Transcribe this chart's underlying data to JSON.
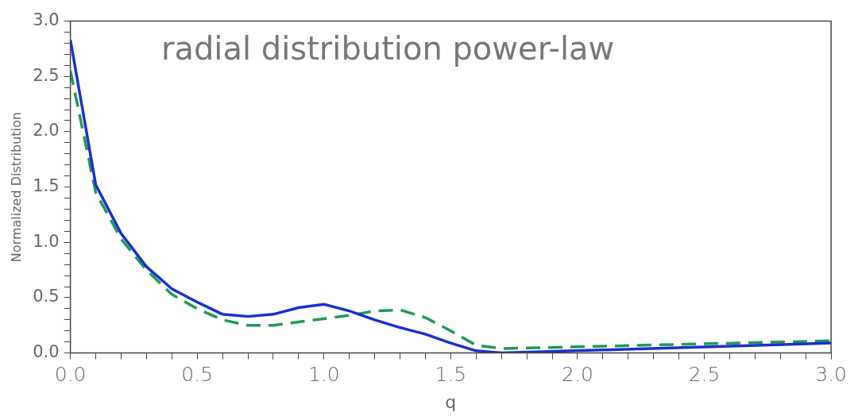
{
  "chart_data": {
    "type": "line",
    "title": "radial distribution power-law",
    "xlabel": "q",
    "ylabel": "Normalized Distribution",
    "marker": "none",
    "grid": false,
    "legend": false,
    "xlim": [
      0,
      3
    ],
    "ylim": [
      0,
      3
    ],
    "xticks": [
      {
        "value": 0,
        "label": "0.0"
      },
      {
        "value": 0.1,
        "label": null
      },
      {
        "value": 0.2,
        "label": null
      },
      {
        "value": 0.3,
        "label": null
      },
      {
        "value": 0.4,
        "label": null
      },
      {
        "value": 0.5,
        "label": "0.5"
      },
      {
        "value": 0.6,
        "label": null
      },
      {
        "value": 0.7,
        "label": null
      },
      {
        "value": 0.8,
        "label": null
      },
      {
        "value": 0.9,
        "label": null
      },
      {
        "value": 1,
        "label": "1.0"
      },
      {
        "value": 1.1,
        "label": null
      },
      {
        "value": 1.2,
        "label": null
      },
      {
        "value": 1.3,
        "label": null
      },
      {
        "value": 1.4,
        "label": null
      },
      {
        "value": 1.5,
        "label": "1.5"
      },
      {
        "value": 1.6,
        "label": null
      },
      {
        "value": 1.7,
        "label": null
      },
      {
        "value": 1.8,
        "label": null
      },
      {
        "value": 1.9,
        "label": null
      },
      {
        "value": 2,
        "label": "2.0"
      },
      {
        "value": 2.1,
        "label": null
      },
      {
        "value": 2.2,
        "label": null
      },
      {
        "value": 2.3,
        "label": null
      },
      {
        "value": 2.4,
        "label": null
      },
      {
        "value": 2.5,
        "label": "2.5"
      },
      {
        "value": 2.6,
        "label": null
      },
      {
        "value": 2.7,
        "label": null
      },
      {
        "value": 2.8,
        "label": null
      },
      {
        "value": 2.9,
        "label": null
      },
      {
        "value": 3,
        "label": "3.0"
      }
    ],
    "yticks": [
      {
        "value": 0,
        "label": "0.0"
      },
      {
        "value": 0.1,
        "label": null
      },
      {
        "value": 0.2,
        "label": null
      },
      {
        "value": 0.3,
        "label": null
      },
      {
        "value": 0.4,
        "label": null
      },
      {
        "value": 0.5,
        "label": "0.5"
      },
      {
        "value": 0.6,
        "label": null
      },
      {
        "value": 0.7,
        "label": null
      },
      {
        "value": 0.8,
        "label": null
      },
      {
        "value": 0.9,
        "label": null
      },
      {
        "value": 1,
        "label": "1.0"
      },
      {
        "value": 1.1,
        "label": null
      },
      {
        "value": 1.2,
        "label": null
      },
      {
        "value": 1.3,
        "label": null
      },
      {
        "value": 1.4,
        "label": null
      },
      {
        "value": 1.5,
        "label": "1.5"
      },
      {
        "value": 1.6,
        "label": null
      },
      {
        "value": 1.7,
        "label": null
      },
      {
        "value": 1.8,
        "label": null
      },
      {
        "value": 1.9,
        "label": null
      },
      {
        "value": 2,
        "label": "2.0"
      },
      {
        "value": 2.1,
        "label": null
      },
      {
        "value": 2.2,
        "label": null
      },
      {
        "value": 2.3,
        "label": null
      },
      {
        "value": 2.4,
        "label": null
      },
      {
        "value": 2.5,
        "label": "2.5"
      },
      {
        "value": 2.6,
        "label": null
      },
      {
        "value": 2.7,
        "label": null
      },
      {
        "value": 2.8,
        "label": null
      },
      {
        "value": 2.9,
        "label": null
      },
      {
        "value": 3,
        "label": "3.0"
      }
    ],
    "series": [
      {
        "color": "#1a2fd0",
        "line_style": "solid",
        "x": [
          0,
          0.1,
          0.2,
          0.3,
          0.4,
          0.5,
          0.6,
          0.7,
          0.8,
          0.9,
          1.0,
          1.1,
          1.2,
          1.3,
          1.4,
          1.5,
          1.6,
          1.7,
          3.0
        ],
        "values": [
          2.83,
          1.52,
          1.08,
          0.78,
          0.58,
          0.46,
          0.35,
          0.33,
          0.35,
          0.41,
          0.44,
          0.38,
          0.3,
          0.23,
          0.17,
          0.09,
          0.02,
          0.0,
          0.09
        ]
      },
      {
        "color": "#1f9a55",
        "line_style": "dashed",
        "x": [
          0,
          0.1,
          0.2,
          0.3,
          0.4,
          0.5,
          0.6,
          0.7,
          0.8,
          0.9,
          1.0,
          1.1,
          1.2,
          1.3,
          1.4,
          1.5,
          1.6,
          1.7,
          3.0
        ],
        "values": [
          2.55,
          1.45,
          1.03,
          0.75,
          0.53,
          0.4,
          0.3,
          0.25,
          0.25,
          0.28,
          0.31,
          0.34,
          0.38,
          0.39,
          0.32,
          0.2,
          0.07,
          0.04,
          0.11
        ]
      }
    ]
  }
}
